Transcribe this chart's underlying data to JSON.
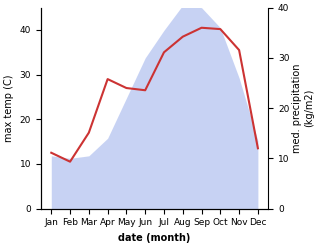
{
  "months": [
    "Jan",
    "Feb",
    "Mar",
    "Apr",
    "May",
    "Jun",
    "Jul",
    "Aug",
    "Sep",
    "Oct",
    "Nov",
    "Dec"
  ],
  "x": [
    0,
    1,
    2,
    3,
    4,
    5,
    6,
    7,
    8,
    9,
    10,
    11
  ],
  "temp_monthly": [
    12.5,
    10.5,
    17.0,
    29.0,
    27.0,
    26.5,
    35.0,
    38.5,
    40.5,
    40.2,
    35.5,
    13.5
  ],
  "precip_monthly": [
    10.5,
    10.0,
    10.5,
    14.0,
    22.0,
    30.0,
    35.5,
    40.5,
    40.0,
    36.0,
    26.0,
    13.5
  ],
  "ylim_left": [
    0,
    45
  ],
  "ylim_right": [
    0,
    40
  ],
  "yticks_left": [
    0,
    10,
    20,
    30,
    40
  ],
  "yticks_right": [
    0,
    10,
    20,
    30,
    40
  ],
  "xlabel": "date (month)",
  "ylabel_left": "max temp (C)",
  "ylabel_right": "med. precipitation\n(kg/m2)",
  "line_color": "#cc3333",
  "fill_color": "#aabbee",
  "fill_alpha": 0.65,
  "line_width": 1.5,
  "background_color": "#ffffff",
  "label_fontsize": 7,
  "tick_fontsize": 6.5
}
